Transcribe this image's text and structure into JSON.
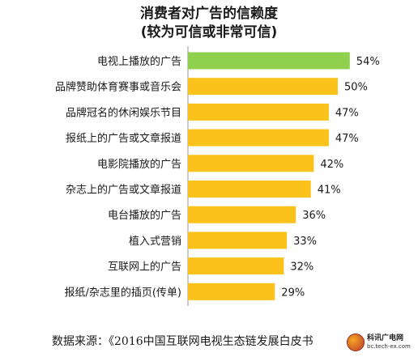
{
  "chart_data": {
    "type": "bar",
    "orientation": "horizontal",
    "title": "消费者对广告的信赖度",
    "subtitle": "(较为可信或非常可信)",
    "categories": [
      "电视上播放的广告",
      "品牌赞助体育赛事或音乐会",
      "品牌冠名的休闲娱乐节目",
      "报纸上的广告或文章报道",
      "电影院播放的广告",
      "杂志上的广告或文章报道",
      "电台播放的广告",
      "植入式营销",
      "互联网上的广告",
      "报纸/杂志里的插页(传单)"
    ],
    "values": [
      54,
      50,
      47,
      47,
      42,
      41,
      36,
      33,
      32,
      29
    ],
    "value_labels": [
      "54%",
      "50%",
      "47%",
      "47%",
      "42%",
      "41%",
      "36%",
      "33%",
      "32%",
      "29%"
    ],
    "unit": "%",
    "xlim": [
      0,
      60
    ],
    "grid": false,
    "colors": {
      "highlight": "#8fd14f",
      "default": "#fbc21c",
      "axis": "#9a9a9a"
    },
    "highlight_index": 0
  },
  "footer": {
    "source": "数据来源：《2016中国互联网电视生态链发展白皮书"
  },
  "watermark": {
    "name": "科讯广电网",
    "url": "bc.tech-ex.com",
    "icon": "globe-icon"
  }
}
